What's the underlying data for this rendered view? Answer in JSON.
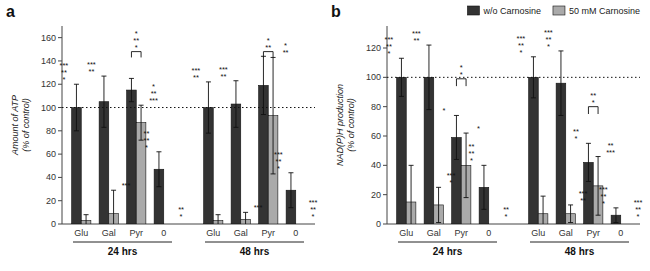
{
  "chart_data": [
    {
      "type": "bar",
      "title": "a",
      "ylabel": "Amount of ATP\n(% of control)",
      "categories": [
        "Glu",
        "Gal",
        "Pyr",
        "0",
        "Glu",
        "Gal",
        "Pyr",
        "0"
      ],
      "group_labels": [
        "24 hrs",
        "48 hrs"
      ],
      "series": [
        {
          "color": "#333333",
          "values": [
            100,
            105,
            115,
            47,
            100,
            103,
            119,
            29
          ],
          "errors": [
            20,
            22,
            10,
            15,
            22,
            20,
            25,
            15
          ],
          "significance": [
            "***\n**\n*",
            "***\n**",
            null,
            "**\n**\n*",
            "***\n**",
            "***\n**",
            null,
            "***\n**\n*"
          ]
        },
        {
          "color": "#aaaaaa",
          "values": [
            3,
            9,
            87,
            0,
            3,
            4,
            93,
            0
          ],
          "errors": [
            5,
            20,
            15,
            0,
            5,
            6,
            50,
            0
          ],
          "significance": [
            null,
            "***",
            "*\n**\n***",
            "**\n*",
            null,
            "***",
            "*\n**",
            "***\n**\n*"
          ]
        }
      ],
      "reference_line": 100,
      "brackets": [
        {
          "category": 2,
          "y": 148,
          "drop": 5,
          "text": "*\n**\n*"
        },
        {
          "category": 6,
          "y": 148,
          "drop": 5,
          "text": "*\n**"
        }
      ],
      "ylim": [
        0,
        170
      ],
      "yticks": [
        0,
        20,
        40,
        60,
        80,
        100,
        120,
        140,
        160
      ],
      "grid": false
    },
    {
      "type": "bar",
      "title": "b",
      "ylabel": "NAD(P)H production\n(% of control)",
      "categories": [
        "Glu",
        "Gal",
        "Pyr",
        "0",
        "Glu",
        "Gal",
        "Pyr",
        "0"
      ],
      "group_labels": [
        "24 hrs",
        "48 hrs"
      ],
      "series": [
        {
          "name": "w/o Carnosine",
          "color": "#333333",
          "values": [
            100,
            100,
            59,
            25,
            100,
            96,
            42,
            6
          ],
          "errors": [
            13,
            22,
            15,
            15,
            14,
            22,
            13,
            5
          ],
          "significance": [
            "***\n**\n*",
            "***\n**",
            "*",
            "**\n**\n*",
            "***\n**\n*",
            "***\n**\n*",
            "**\n*",
            "***\n**\n*"
          ]
        },
        {
          "name": "50 mM Carnosine",
          "color": "#aaaaaa",
          "values": [
            15,
            13,
            40,
            0,
            7,
            7,
            26,
            0
          ],
          "errors": [
            25,
            12,
            22,
            0,
            12,
            6,
            20,
            0
          ],
          "significance": [
            null,
            "***\n*",
            "*",
            "**\n*",
            null,
            "***\n**",
            "**\n***",
            "***\n**\n*"
          ]
        }
      ],
      "reference_line": 100,
      "brackets": [
        {
          "category": 2,
          "y": 99,
          "drop": 5,
          "text": "*\n*"
        },
        {
          "category": 6,
          "y": 80,
          "drop": 5,
          "text": "**\n*"
        }
      ],
      "ylim": [
        0,
        135
      ],
      "yticks": [
        0,
        20,
        40,
        60,
        80,
        100,
        120
      ],
      "grid": false,
      "legend": "upper right"
    }
  ]
}
